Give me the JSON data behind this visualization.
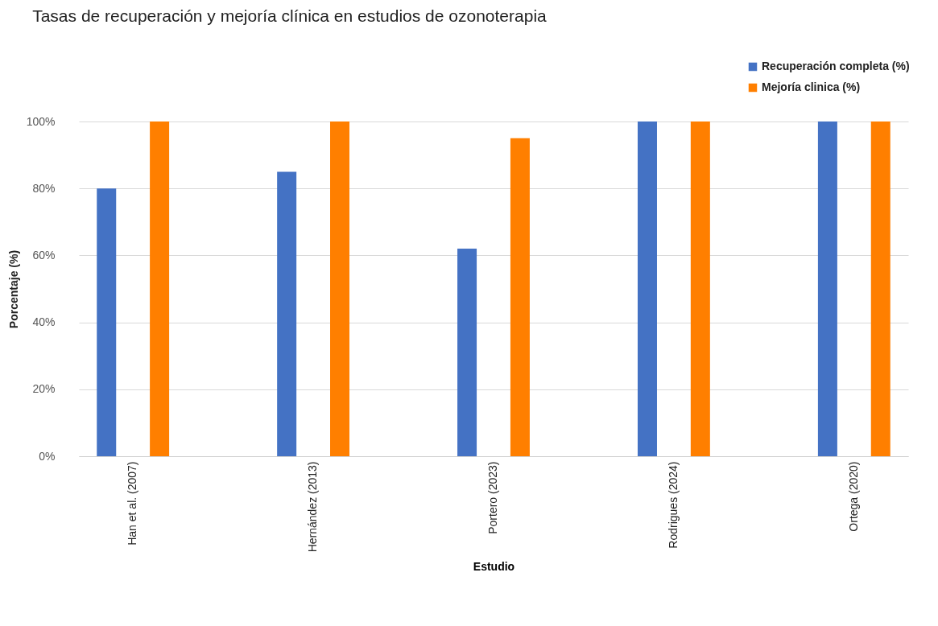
{
  "chart_data": {
    "type": "bar",
    "title": "Tasas de recuperación y mejoría clínica en estudios de ozonoterapia",
    "xlabel": "Estudio",
    "ylabel": "Porcentaje (%)",
    "categories": [
      "Han et al. (2007)",
      "Hernández (2013)",
      "Portero (2023)",
      "Rodrigues (2024)",
      "Ortega (2020)"
    ],
    "series": [
      {
        "name": "Recuperación completa (%)",
        "color": "#4472c4",
        "values": [
          80,
          85,
          62,
          100,
          100
        ]
      },
      {
        "name": "Mejoría clinica (%)",
        "color": "#ff7f00",
        "values": [
          100,
          100,
          95,
          100,
          100
        ]
      }
    ],
    "ylim": [
      0,
      100
    ],
    "yticks": [
      {
        "value": 0,
        "label": "0%"
      },
      {
        "value": 20,
        "label": "20%"
      },
      {
        "value": 40,
        "label": "40%"
      },
      {
        "value": 60,
        "label": "60%"
      },
      {
        "value": 80,
        "label": "80%"
      },
      {
        "value": 100,
        "label": "100%"
      }
    ],
    "grid": "y",
    "legend": "top right"
  }
}
